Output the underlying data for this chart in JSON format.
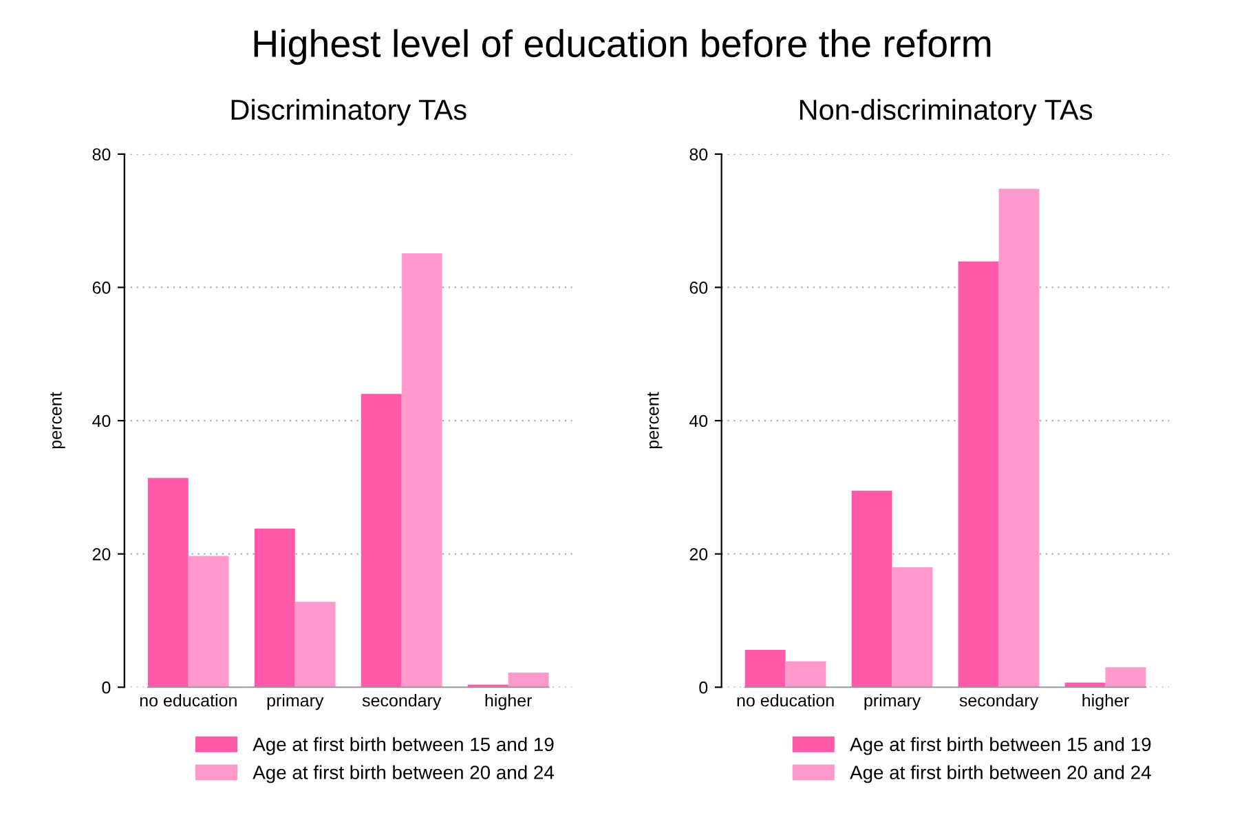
{
  "chart_data": [
    {
      "type": "bar",
      "title": "Highest level of education before the reform",
      "subtitle": "Discriminatory TAs",
      "ylabel": "percent",
      "categories": [
        "no education",
        "primary",
        "secondary",
        "higher"
      ],
      "series": [
        {
          "name": "Age at first birth between 15 and 19",
          "color": "#ff5aaa",
          "values": [
            31.4,
            23.8,
            44.0,
            0.4
          ]
        },
        {
          "name": "Age at first birth between 20 and 24",
          "color": "#ff99cc",
          "values": [
            19.7,
            12.8,
            65.1,
            2.2
          ]
        }
      ],
      "ylim": [
        0,
        80
      ],
      "yticks": [
        0,
        20,
        40,
        60,
        80
      ],
      "grid": "y",
      "legend": "bottom"
    },
    {
      "type": "bar",
      "subtitle": "Non-discriminatory TAs",
      "ylabel": "percent",
      "categories": [
        "no education",
        "primary",
        "secondary",
        "higher"
      ],
      "series": [
        {
          "name": "Age at first birth between 15 and 19",
          "color": "#ff5aaa",
          "values": [
            5.6,
            29.5,
            63.9,
            0.7
          ]
        },
        {
          "name": "Age at first birth between 20 and 24",
          "color": "#ff99cc",
          "values": [
            3.9,
            18.0,
            74.8,
            3.0
          ]
        }
      ],
      "ylim": [
        0,
        80
      ],
      "yticks": [
        0,
        20,
        40,
        60,
        80
      ],
      "grid": "y",
      "legend": "bottom"
    }
  ]
}
